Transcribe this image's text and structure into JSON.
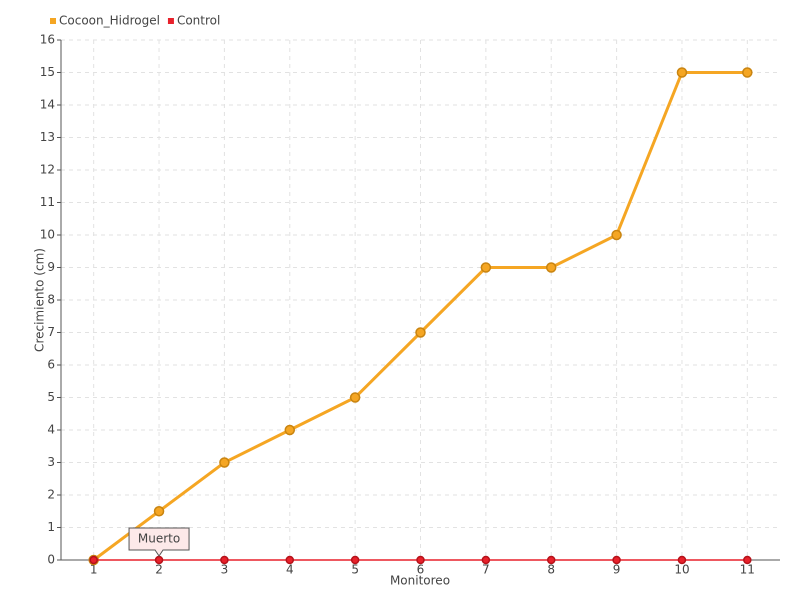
{
  "chart_data": {
    "type": "line",
    "x_label": "Monitoreo",
    "y_label": "Crecimiento (cm)",
    "categories": [
      "1",
      "2",
      "3",
      "4",
      "5",
      "6",
      "7",
      "8",
      "9",
      "10",
      "11"
    ],
    "series": [
      {
        "name": "Cocoon_Hidrogel",
        "color": "#f5a623",
        "values": [
          0,
          1.5,
          3,
          4,
          5,
          7,
          9,
          9,
          10,
          15,
          15
        ]
      },
      {
        "name": "Control",
        "color": "#e8212b",
        "values": [
          0,
          0,
          0,
          0,
          0,
          0,
          0,
          0,
          0,
          0,
          0
        ]
      }
    ],
    "annotation": "Muerto",
    "ylim": [
      0,
      16
    ],
    "yticks": [
      0,
      1,
      2,
      3,
      4,
      5,
      6,
      7,
      8,
      9,
      10,
      11,
      12,
      13,
      14,
      15,
      16
    ],
    "grid": true,
    "legend": "top-left"
  }
}
